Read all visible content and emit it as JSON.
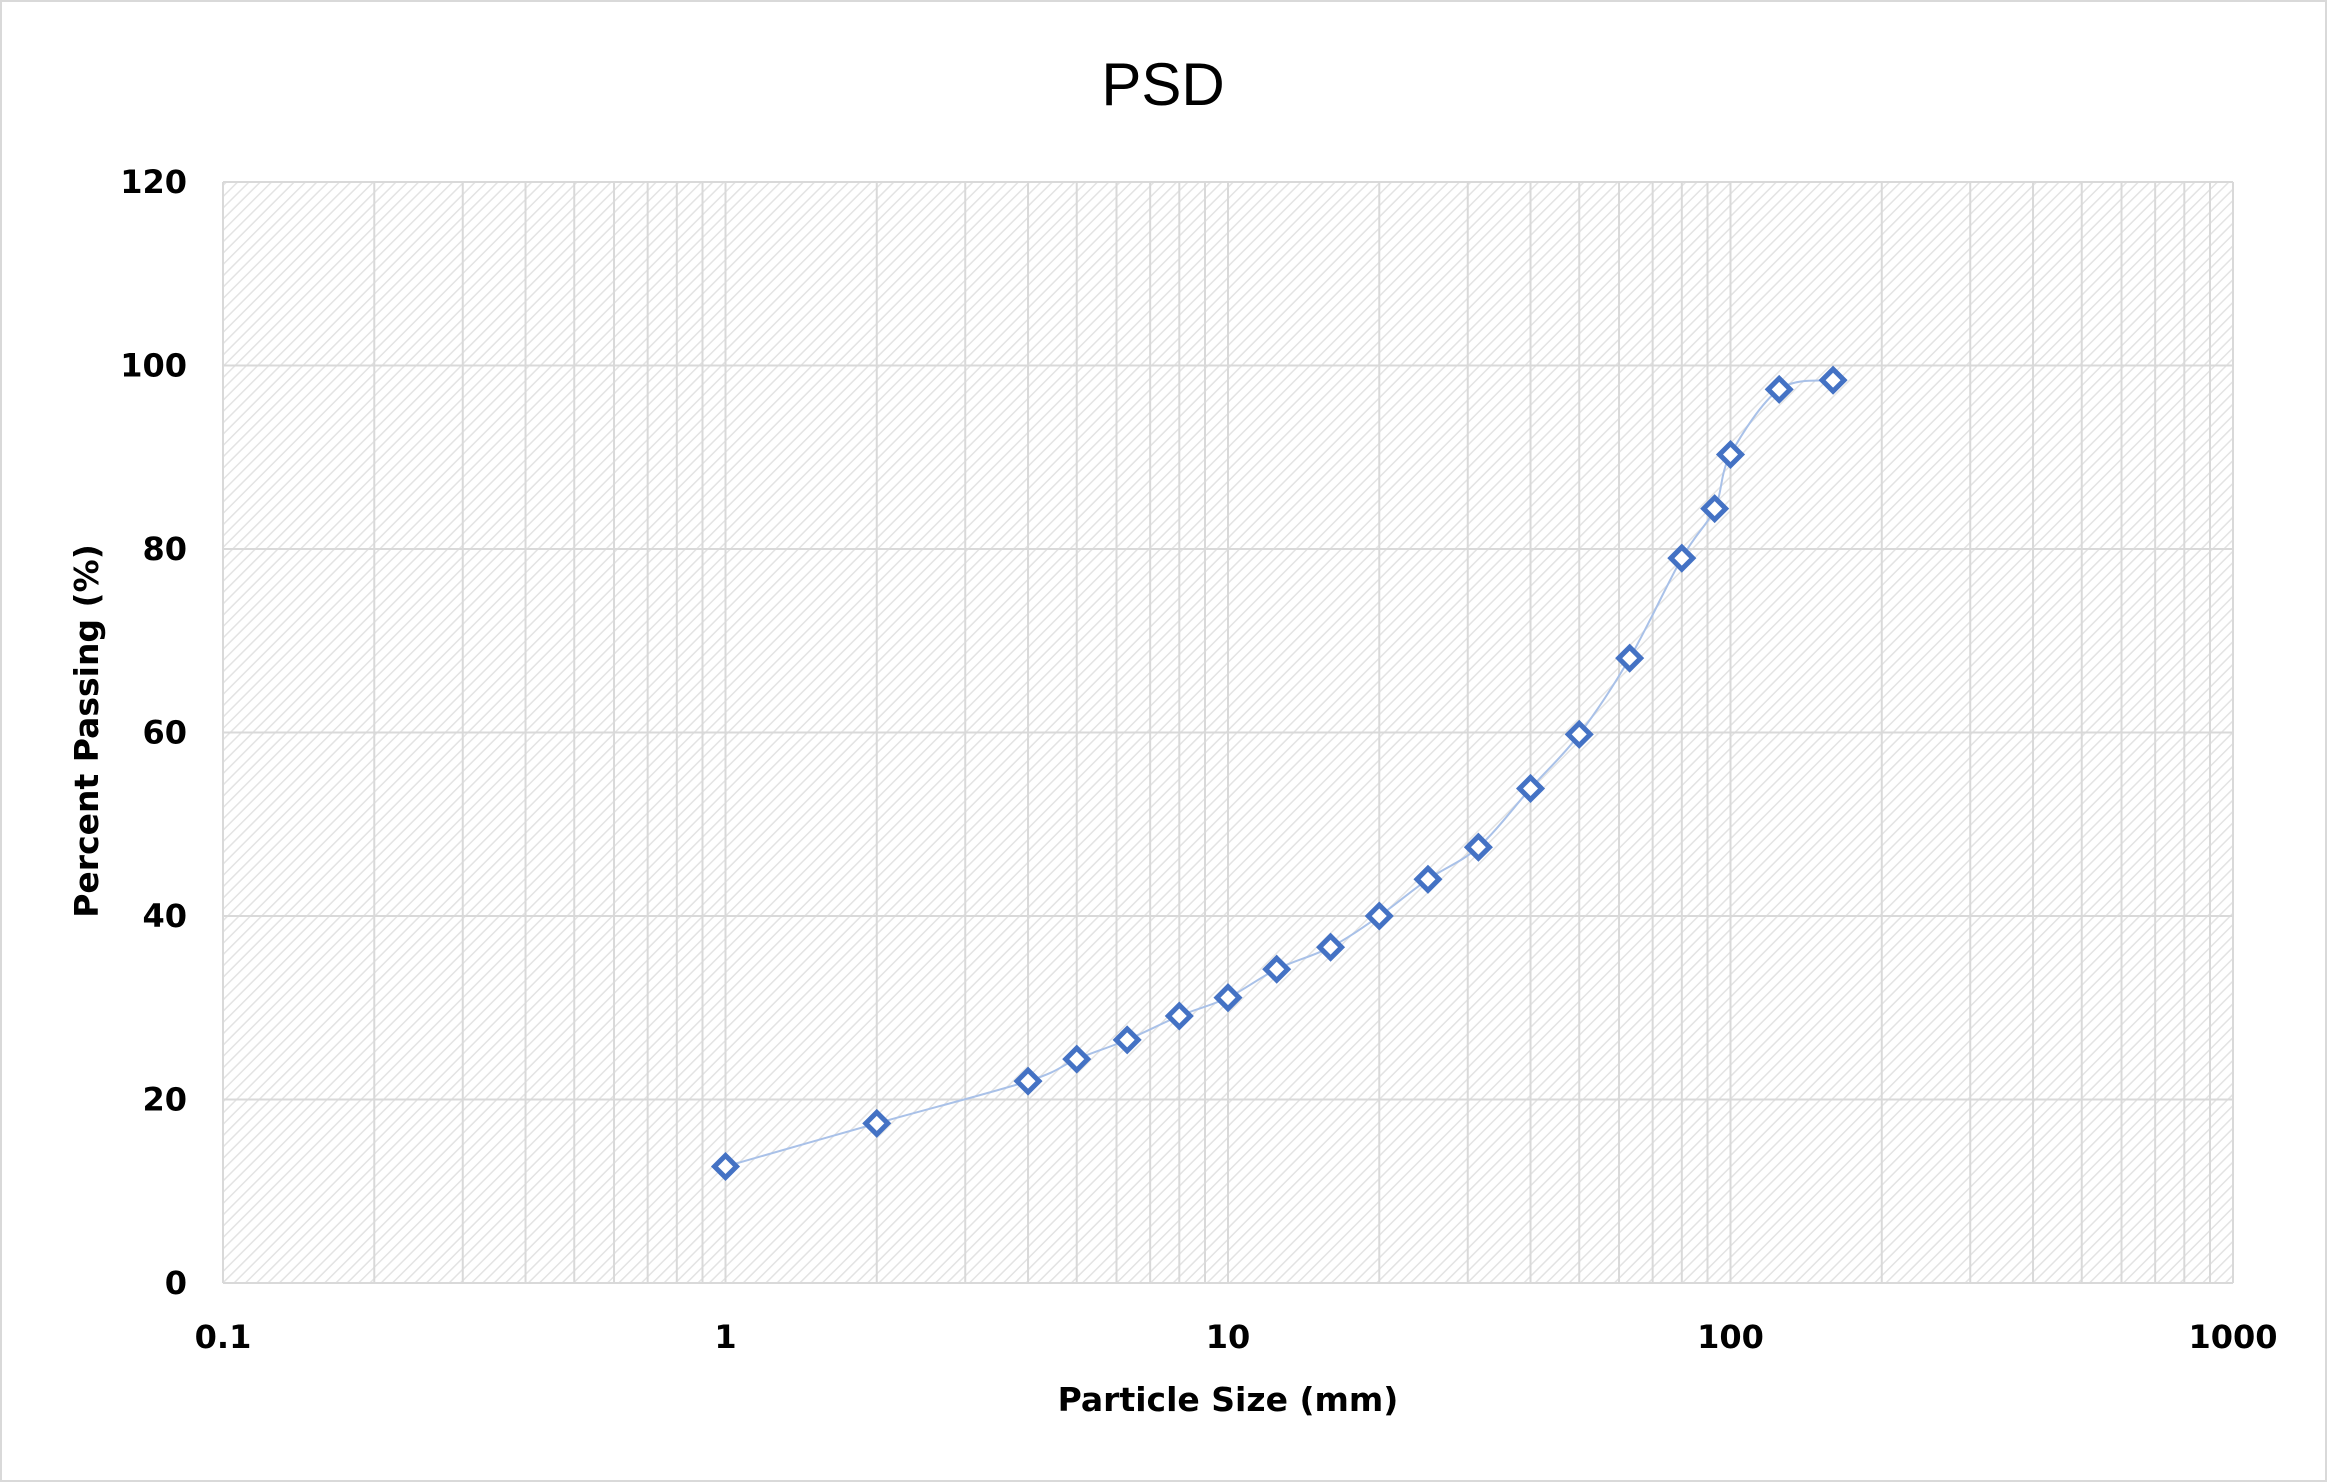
{
  "chart_data": {
    "type": "scatter",
    "title": "PSD",
    "xlabel": "Particle Size (mm)",
    "ylabel": "Percent Passing (%)",
    "xscale": "log",
    "xlim": [
      0.1,
      1000
    ],
    "ylim": [
      0,
      120
    ],
    "grid": true,
    "x_tick_labels": [
      "0.1",
      "1",
      "10",
      "100",
      "1000"
    ],
    "y_tick_labels": [
      "0",
      "20",
      "40",
      "60",
      "80",
      "100",
      "120"
    ],
    "series": [
      {
        "color": "#4472c4",
        "line_color": "#a9c1e8",
        "marker": "diamond",
        "x": [
          1,
          2,
          4,
          5,
          6.3,
          8,
          10,
          12.5,
          16,
          20,
          25,
          31.5,
          40,
          50,
          63,
          80,
          93,
          100,
          125,
          160
        ],
        "y": [
          12.7,
          17.4,
          22,
          24.4,
          26.5,
          29.1,
          31.1,
          34.2,
          36.6,
          40,
          44,
          47.5,
          53.9,
          59.8,
          68.1,
          79,
          84.4,
          90.3,
          97.4,
          98.4
        ]
      }
    ]
  }
}
